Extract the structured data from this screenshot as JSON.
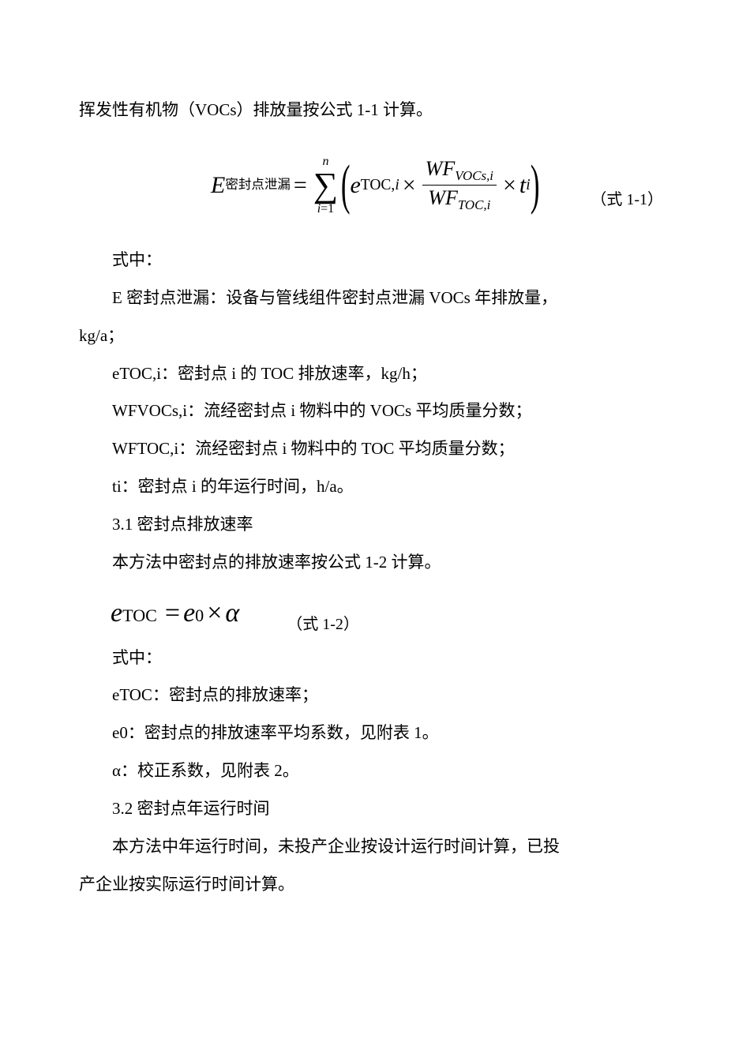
{
  "intro": "挥发性有机物（VOCs）排放量按公式 1-1 计算。",
  "formula1": {
    "E_var": "E",
    "E_sub": "密封点泄漏",
    "eq": "=",
    "sigma_top": "n",
    "sigma_bot_var": "i",
    "sigma_bot_eq": "=1",
    "e_var": "e",
    "e_sub1": "TOC,",
    "e_sub2": "i",
    "times": "×",
    "WF_num_var": "WF",
    "WF_num_sub1": "VOCs",
    "WF_num_sub2": ",i",
    "WF_den_var": "WF",
    "WF_den_sub1": "TOC",
    "WF_den_sub2": ",i",
    "t_var": "t",
    "t_sub": "i",
    "label": "（式 1-1）"
  },
  "where_label": "式中：",
  "defs": {
    "E": "E 密封点泄漏：设备与管线组件密封点泄漏 VOCs 年排放量，",
    "E_cont": "kg/a；",
    "eTOCi": "eTOC,i：密封点 i 的 TOC 排放速率，kg/h；",
    "WFVOCs": "WFVOCs,i：流经密封点 i 物料中的 VOCs 平均质量分数；",
    "WFTOC": "WFTOC,i：流经密封点 i 物料中的 TOC 平均质量分数；",
    "ti": "ti：密封点 i 的年运行时间，h/a。"
  },
  "sec31": "3.1 密封点排放速率",
  "sec31_text": "本方法中密封点的排放速率按公式 1-2 计算。",
  "formula2": {
    "e_var": "e",
    "e_sub": "TOC",
    "eq": "=",
    "e0_var": "e",
    "e0_sub": "0",
    "times": "×",
    "alpha": "α",
    "label": "（式 1-2）"
  },
  "where_label2": "式中：",
  "defs2": {
    "eTOC": "eTOC：密封点的排放速率；",
    "e0": "e0：密封点的排放速率平均系数，见附表 1。",
    "alpha": "α：校正系数，见附表 2。"
  },
  "sec32": "3.2 密封点年运行时间",
  "sec32_text1": "本方法中年运行时间，未投产企业按设计运行时间计算，已投",
  "sec32_text2": "产企业按实际运行时间计算。"
}
